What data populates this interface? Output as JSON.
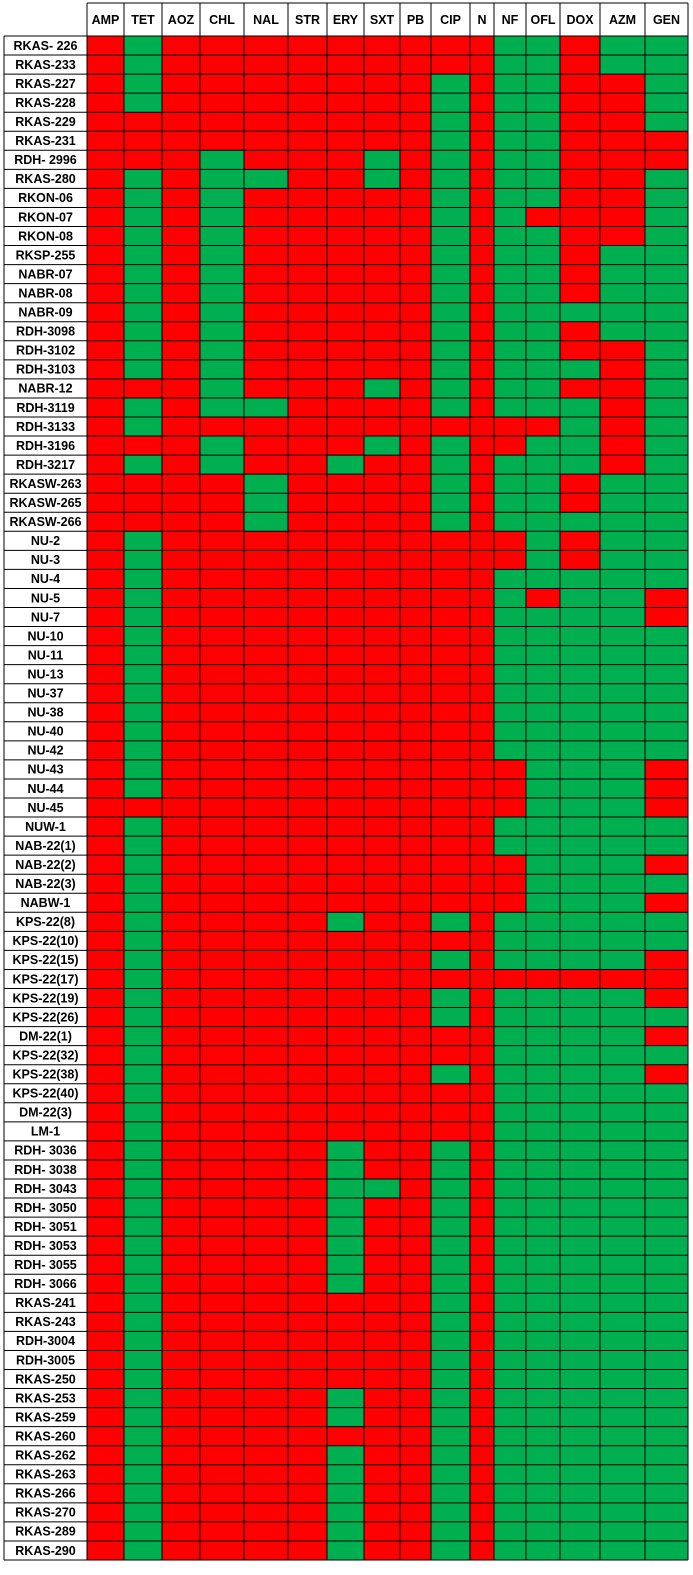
{
  "legend": {
    "R": {
      "label": "",
      "color": "#ff0000"
    },
    "S": {
      "label": "",
      "color": "#00b050"
    }
  },
  "chart_data": {
    "type": "heatmap",
    "columns": [
      "AMP",
      "TET",
      "AOZ",
      "CHL",
      "NAL",
      "STR",
      "ERY",
      "SXT",
      "PB",
      "CIP",
      "N",
      "NF",
      "OFL",
      "DOX",
      "AZM",
      "GEN"
    ],
    "rows": [
      {
        "label": "RKAS- 226",
        "cells": "RSRRRRRRRRRSSRSS"
      },
      {
        "label": "RKAS-233",
        "cells": "RSRRRRRRRRRSSRSS"
      },
      {
        "label": "RKAS-227",
        "cells": "RSRRRRRRRSRSSRRS"
      },
      {
        "label": "RKAS-228",
        "cells": "RSRRRRRRRSRSSRRS"
      },
      {
        "label": "RKAS-229",
        "cells": "RRRRRRRRRSRSSRRS"
      },
      {
        "label": "RKAS-231",
        "cells": "RRRRRRRRRSRSSRRR"
      },
      {
        "label": "RDH- 2996",
        "cells": "RRRSRRRSRSRSSRRR"
      },
      {
        "label": "RKAS-280",
        "cells": "RSRSSRRSRSRSSRRS"
      },
      {
        "label": "RKON-06",
        "cells": "RSRSRRRRRSRSSRRS"
      },
      {
        "label": "RKON-07",
        "cells": "RSRSRRRRRSRSRRRS"
      },
      {
        "label": "RKON-08",
        "cells": "RSRSRRRRRSRSSRRS"
      },
      {
        "label": "RKSP-255",
        "cells": "RSRSRRRRRSRSSRSS"
      },
      {
        "label": "NABR-07",
        "cells": "RSRSRRRRRSRSSRSS"
      },
      {
        "label": "NABR-08",
        "cells": "RSRSRRRRRSRSSRSS"
      },
      {
        "label": "NABR-09",
        "cells": "RSRSRRRRRSRSSSSS"
      },
      {
        "label": "RDH-3098",
        "cells": "RSRSRRRRRSRSSRSS"
      },
      {
        "label": "RDH-3102",
        "cells": "RSRSRRRRRSRSSRRS"
      },
      {
        "label": "RDH-3103",
        "cells": "RSRSRRRRRSRSSSRS"
      },
      {
        "label": "NABR-12",
        "cells": "RRRSRRRSRSRSSRRS"
      },
      {
        "label": "RDH-3119",
        "cells": "RSRSSRRRRSRSSSRS"
      },
      {
        "label": "RDH-3133",
        "cells": "RSRRRRRRRRRRRSRS"
      },
      {
        "label": "RDH-3196",
        "cells": "RRRSRRRSRSRRSSRS"
      },
      {
        "label": "RDH-3217",
        "cells": "RSRSRRSRRSRSSSRS"
      },
      {
        "label": "RKASW-263",
        "cells": "RRRRSRRRRSRSSRSS"
      },
      {
        "label": "RKASW-265",
        "cells": "RRRRSRRRRSRSSRSS"
      },
      {
        "label": "RKASW-266",
        "cells": "RRRRSRRRRSRSSSSS"
      },
      {
        "label": "NU-2",
        "cells": "RSRRRRRRRRRRSRSS"
      },
      {
        "label": "NU-3",
        "cells": "RSRRRRRRRRRRSRSS"
      },
      {
        "label": "NU-4",
        "cells": "RSRRRRRRRRRSSSSS"
      },
      {
        "label": "NU-5",
        "cells": "RSRRRRRRRRRSRSSR"
      },
      {
        "label": "NU-7",
        "cells": "RSRRRRRRRRRSSSSR"
      },
      {
        "label": "NU-10",
        "cells": "RSRRRRRRRRRSSSSS"
      },
      {
        "label": "NU-11",
        "cells": "RSRRRRRRRRRSSSSS"
      },
      {
        "label": "NU-13",
        "cells": "RSRRRRRRRRRSSSSS"
      },
      {
        "label": "NU-37",
        "cells": "RSRRRRRRRRRSSSSS"
      },
      {
        "label": "NU-38",
        "cells": "RSRRRRRRRRRSSSSS"
      },
      {
        "label": "NU-40",
        "cells": "RSRRRRRRRRRSSSSS"
      },
      {
        "label": "NU-42",
        "cells": "RSRRRRRRRRRSSSSS"
      },
      {
        "label": "NU-43",
        "cells": "RSRRRRRRRRRRSSSR"
      },
      {
        "label": "NU-44",
        "cells": "RSRRRRRRRRRRSSSR"
      },
      {
        "label": "NU-45",
        "cells": "RRRRRRRRRRRRSSSR"
      },
      {
        "label": "NUW-1",
        "cells": "RSRRRRRRRRRSSSSS"
      },
      {
        "label": "NAB-22(1)",
        "cells": "RSRRRRRRRRRSSSSS"
      },
      {
        "label": "NAB-22(2)",
        "cells": "RSRRRRRRRRRRSSSR"
      },
      {
        "label": "NAB-22(3)",
        "cells": "RSRRRRRRRRRRSSSS"
      },
      {
        "label": "NABW-1",
        "cells": "RSRRRRRRRRRRSSSR"
      },
      {
        "label": "KPS-22(8)",
        "cells": "RSRRRRSRRSRSSSSS"
      },
      {
        "label": "KPS-22(10)",
        "cells": "RSRRRRRRRRRSSSSS"
      },
      {
        "label": "KPS-22(15)",
        "cells": "RSRRRRRRRSRSSSSR"
      },
      {
        "label": "KPS-22(17)",
        "cells": "RSRRRRRRRRRRRRRR"
      },
      {
        "label": "KPS-22(19)",
        "cells": "RSRRRRRRRSRSSSSR"
      },
      {
        "label": "KPS-22(26)",
        "cells": "RSRRRRRRRSRSSSSS"
      },
      {
        "label": "DM-22(1)",
        "cells": "RSRRRRRRRRRSSSSR"
      },
      {
        "label": "KPS-22(32)",
        "cells": "RSRRRRRRRRRSSSSS"
      },
      {
        "label": "KPS-22(38)",
        "cells": "RSRRRRRRRSRSSSSR"
      },
      {
        "label": "KPS-22(40)",
        "cells": "RSRRRRRRRRRSSSSS"
      },
      {
        "label": "DM-22(3)",
        "cells": "RSRRRRRRRRRSSSSS"
      },
      {
        "label": "LM-1",
        "cells": "RSRRRRRRRRRSSSSS"
      },
      {
        "label": "RDH- 3036",
        "cells": "RSRRRRSRRSRSSSSS"
      },
      {
        "label": "RDH- 3038",
        "cells": "RSRRRRSRRSRSSSSS"
      },
      {
        "label": "RDH- 3043",
        "cells": "RSRRRRSSRSRSSSSS"
      },
      {
        "label": "RDH- 3050",
        "cells": "RSRRRRSRRSRSSSSS"
      },
      {
        "label": "RDH- 3051",
        "cells": "RSRRRRSRRSRSSSSS"
      },
      {
        "label": "RDH- 3053",
        "cells": "RSRRRRSRRSRSSSSS"
      },
      {
        "label": "RDH- 3055",
        "cells": "RSRRRRSRRSRSSSSS"
      },
      {
        "label": "RDH- 3066",
        "cells": "RSRRRRSRRSRSSSSS"
      },
      {
        "label": "RKAS-241",
        "cells": "RSRRRRRRRSRSSSSS"
      },
      {
        "label": "RKAS-243",
        "cells": "RSRRRRRRRSRSSSSS"
      },
      {
        "label": "RDH-3004",
        "cells": "RSRRRRRRRSRSSSSS"
      },
      {
        "label": "RDH-3005",
        "cells": "RSRRRRRRRSRSSSSS"
      },
      {
        "label": "RKAS-250",
        "cells": "RSRRRRRRRSRSSSSS"
      },
      {
        "label": "RKAS-253",
        "cells": "RSRRRRSRRSRSSSSS"
      },
      {
        "label": "RKAS-259",
        "cells": "RSRRRRSRRSRSSSSS"
      },
      {
        "label": "RKAS-260",
        "cells": "RSRRRRRRRSRSSSSS"
      },
      {
        "label": "RKAS-262",
        "cells": "RSRRRRSRRSRSSSSS"
      },
      {
        "label": "RKAS-263",
        "cells": "RSRRRRSRRSRSSSSS"
      },
      {
        "label": "RKAS-266",
        "cells": "RSRRRRSRRSRSSSSS"
      },
      {
        "label": "RKAS-270",
        "cells": "RSRRRRSRRSRSSSSS"
      },
      {
        "label": "RKAS-289",
        "cells": "RSRRRRSRRSRSSSSS"
      },
      {
        "label": "RKAS-290",
        "cells": "RSRRRRSRRSRSSSSS"
      }
    ]
  }
}
